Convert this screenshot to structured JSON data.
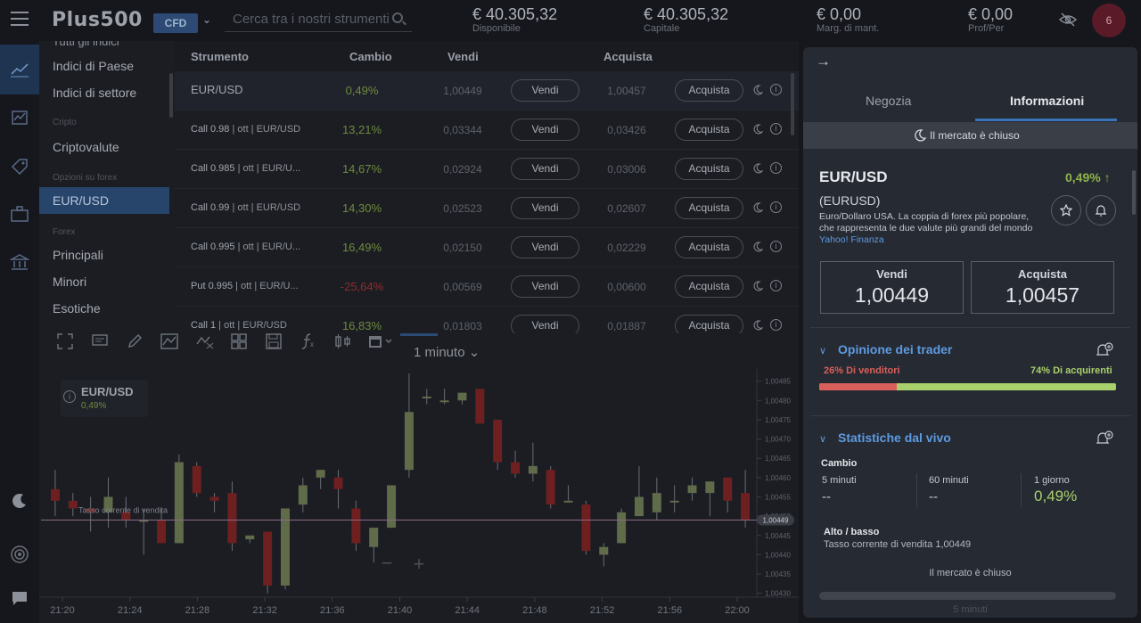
{
  "header": {
    "logo": "Plus500",
    "mode": "CFD",
    "search_placeholder": "Cerca tra i nostri strumenti",
    "stats": [
      {
        "value": "€ 40.305,32",
        "label": "Disponibile"
      },
      {
        "value": "€ 40.305,32",
        "label": "Capitale"
      },
      {
        "value": "€ 0,00",
        "label": "Marg. di mant."
      },
      {
        "value": "€ 0,00",
        "label": "Prof/Per"
      }
    ],
    "notifications": "6"
  },
  "sidebar": {
    "cut_item": "Tutti gli indici",
    "items": [
      {
        "label": "Indici di Paese"
      },
      {
        "label": "Indici di settore"
      },
      {
        "category": "Cripto"
      },
      {
        "label": "Criptovalute"
      },
      {
        "category": "Opzioni su forex"
      },
      {
        "label": "EUR/USD"
      },
      {
        "category": "Forex"
      },
      {
        "label": "Principali"
      },
      {
        "label": "Minori"
      },
      {
        "label": "Esotiche"
      }
    ]
  },
  "table": {
    "headers": [
      "Strumento",
      "Cambio",
      "Vendi",
      "Acquista"
    ],
    "sell_label": "Vendi",
    "buy_label": "Acquista",
    "rows": [
      {
        "name": "EUR/USD",
        "meta": "",
        "change": "0,49%",
        "sell": "1,00449",
        "buy": "1,00457",
        "dir": "pos"
      },
      {
        "name": "Call 0.98",
        "meta": " | ott | EUR/USD",
        "change": "13,21%",
        "sell": "0,03344",
        "buy": "0,03426",
        "dir": "pos"
      },
      {
        "name": "Call 0.985",
        "meta": " | ott | EUR/U...",
        "change": "14,67%",
        "sell": "0,02924",
        "buy": "0,03006",
        "dir": "pos"
      },
      {
        "name": "Call 0.99",
        "meta": " | ott | EUR/USD",
        "change": "14,30%",
        "sell": "0,02523",
        "buy": "0,02607",
        "dir": "pos"
      },
      {
        "name": "Call 0.995",
        "meta": " | ott | EUR/U...",
        "change": "16,49%",
        "sell": "0,02150",
        "buy": "0,02229",
        "dir": "pos"
      },
      {
        "name": "Put 0.995",
        "meta": " | ott | EUR/U...",
        "change": "-25,64%",
        "sell": "0,00569",
        "buy": "0,00600",
        "dir": "neg"
      },
      {
        "name": "Call 1",
        "meta": " | ott | EUR/USD",
        "change": "16,83%",
        "sell": "0,01803",
        "buy": "0,01887",
        "dir": "pos"
      }
    ]
  },
  "chart_panel": {
    "timeframe": "1 minuto",
    "legend_title": "EUR/USD",
    "legend_change": "0,49%",
    "line_label": "Tasso corrente di vendita",
    "current_price": "1,00449",
    "zoom_out": "−",
    "zoom_in": "+"
  },
  "chart_data": {
    "type": "candlestick",
    "title": "EUR/USD",
    "y_ticks": [
      "1,00485",
      "1,00480",
      "1,00475",
      "1,00470",
      "1,00465",
      "1,00460",
      "1,00455",
      "1,00450",
      "1,00445",
      "1,00440",
      "1,00435",
      "1,00430"
    ],
    "x_ticks": [
      "21:20",
      "21:24",
      "21:28",
      "21:32",
      "21:36",
      "21:40",
      "21:44",
      "21:48",
      "21:52",
      "21:56",
      "22:00"
    ],
    "ylim": [
      1.00429,
      1.00487
    ],
    "current": 1.00449,
    "candles": [
      {
        "o": 1.00457,
        "h": 1.00462,
        "l": 1.0045,
        "c": 1.00454
      },
      {
        "o": 1.00454,
        "h": 1.00456,
        "l": 1.0045,
        "c": 1.00452
      },
      {
        "o": 1.00452,
        "h": 1.00455,
        "l": 1.00446,
        "c": 1.00451
      },
      {
        "o": 1.00451,
        "h": 1.0046,
        "l": 1.00447,
        "c": 1.00455
      },
      {
        "o": 1.00451,
        "h": 1.00455,
        "l": 1.00447,
        "c": 1.00449
      },
      {
        "o": 1.00449,
        "h": 1.00452,
        "l": 1.0044,
        "c": 1.00449
      },
      {
        "o": 1.00449,
        "h": 1.00452,
        "l": 1.00443,
        "c": 1.00443
      },
      {
        "o": 1.00443,
        "h": 1.00466,
        "l": 1.00443,
        "c": 1.00464
      },
      {
        "o": 1.00463,
        "h": 1.00464,
        "l": 1.00455,
        "c": 1.00456
      },
      {
        "o": 1.00455,
        "h": 1.00456,
        "l": 1.00451,
        "c": 1.00454
      },
      {
        "o": 1.00456,
        "h": 1.00459,
        "l": 1.00441,
        "c": 1.00443
      },
      {
        "o": 1.00444,
        "h": 1.00445,
        "l": 1.00443,
        "c": 1.00445
      },
      {
        "o": 1.00446,
        "h": 1.00446,
        "l": 1.0043,
        "c": 1.00432
      },
      {
        "o": 1.00432,
        "h": 1.00452,
        "l": 1.00431,
        "c": 1.00452
      },
      {
        "o": 1.00453,
        "h": 1.0046,
        "l": 1.00451,
        "c": 1.00458
      },
      {
        "o": 1.0046,
        "h": 1.00462,
        "l": 1.00457,
        "c": 1.00462
      },
      {
        "o": 1.0046,
        "h": 1.00462,
        "l": 1.00452,
        "c": 1.00457
      },
      {
        "o": 1.00452,
        "h": 1.00454,
        "l": 1.00441,
        "c": 1.00443
      },
      {
        "o": 1.00442,
        "h": 1.00447,
        "l": 1.00438,
        "c": 1.00447
      },
      {
        "o": 1.00447,
        "h": 1.00458,
        "l": 1.00447,
        "c": 1.00458
      },
      {
        "o": 1.00462,
        "h": 1.00487,
        "l": 1.0046,
        "c": 1.00477
      },
      {
        "o": 1.00481,
        "h": 1.00483,
        "l": 1.00479,
        "c": 1.00481
      },
      {
        "o": 1.0048,
        "h": 1.00483,
        "l": 1.00479,
        "c": 1.0048
      },
      {
        "o": 1.0048,
        "h": 1.00482,
        "l": 1.00479,
        "c": 1.00482
      },
      {
        "o": 1.00483,
        "h": 1.00483,
        "l": 1.00474,
        "c": 1.00474
      },
      {
        "o": 1.00475,
        "h": 1.00475,
        "l": 1.00462,
        "c": 1.00464
      },
      {
        "o": 1.00464,
        "h": 1.00467,
        "l": 1.0046,
        "c": 1.00461
      },
      {
        "o": 1.00461,
        "h": 1.00469,
        "l": 1.00459,
        "c": 1.00463
      },
      {
        "o": 1.00462,
        "h": 1.00463,
        "l": 1.00452,
        "c": 1.00453
      },
      {
        "o": 1.00454,
        "h": 1.00458,
        "l": 1.00454,
        "c": 1.00454
      },
      {
        "o": 1.00453,
        "h": 1.00454,
        "l": 1.0044,
        "c": 1.00441
      },
      {
        "o": 1.0044,
        "h": 1.00443,
        "l": 1.00437,
        "c": 1.00442
      },
      {
        "o": 1.00443,
        "h": 1.00452,
        "l": 1.00443,
        "c": 1.00451
      },
      {
        "o": 1.0045,
        "h": 1.00463,
        "l": 1.0045,
        "c": 1.00455
      },
      {
        "o": 1.00451,
        "h": 1.0046,
        "l": 1.00449,
        "c": 1.00456
      },
      {
        "o": 1.00454,
        "h": 1.00458,
        "l": 1.00451,
        "c": 1.00454
      },
      {
        "o": 1.00456,
        "h": 1.0046,
        "l": 1.00454,
        "c": 1.00458
      },
      {
        "o": 1.00456,
        "h": 1.00459,
        "l": 1.0045,
        "c": 1.00459
      },
      {
        "o": 1.0046,
        "h": 1.0046,
        "l": 1.00451,
        "c": 1.00454
      },
      {
        "o": 1.00456,
        "h": 1.00462,
        "l": 1.00447,
        "c": 1.00449
      }
    ],
    "up_color": "#5f6b49",
    "down_color": "#6e1f1f"
  },
  "panel": {
    "tabs": [
      "Negozia",
      "Informazioni"
    ],
    "market_status": "Il mercato è chiuso",
    "instrument": "EUR/USD",
    "change": "0,49% ↑",
    "code": "(EURUSD)",
    "description": "Euro/Dollaro USA. La coppia di forex più popolare, che rappresenta le due valute più grandi del mondo",
    "source": "Yahoo! Finanza",
    "sell": {
      "label": "Vendi",
      "value": "1,00449"
    },
    "buy": {
      "label": "Acquista",
      "value": "1,00457"
    },
    "sentiment": {
      "title": "Opinione dei trader",
      "sellers": "26% Di venditori",
      "buyers": "74% Di acquirenti",
      "sellers_pct": 26
    },
    "live_stats": {
      "title": "Statistiche dal vivo",
      "change_label": "Cambio",
      "cols": [
        {
          "label": "5 minuti",
          "value": "--"
        },
        {
          "label": "60 minuti",
          "value": "--"
        },
        {
          "label": "1 giorno",
          "value": "0,49%"
        }
      ],
      "hl_label": "Alto / basso",
      "hl_sub": "Tasso corrente di vendita 1,00449",
      "closed": "Il mercato è chiuso",
      "period": "5 minuti"
    }
  }
}
